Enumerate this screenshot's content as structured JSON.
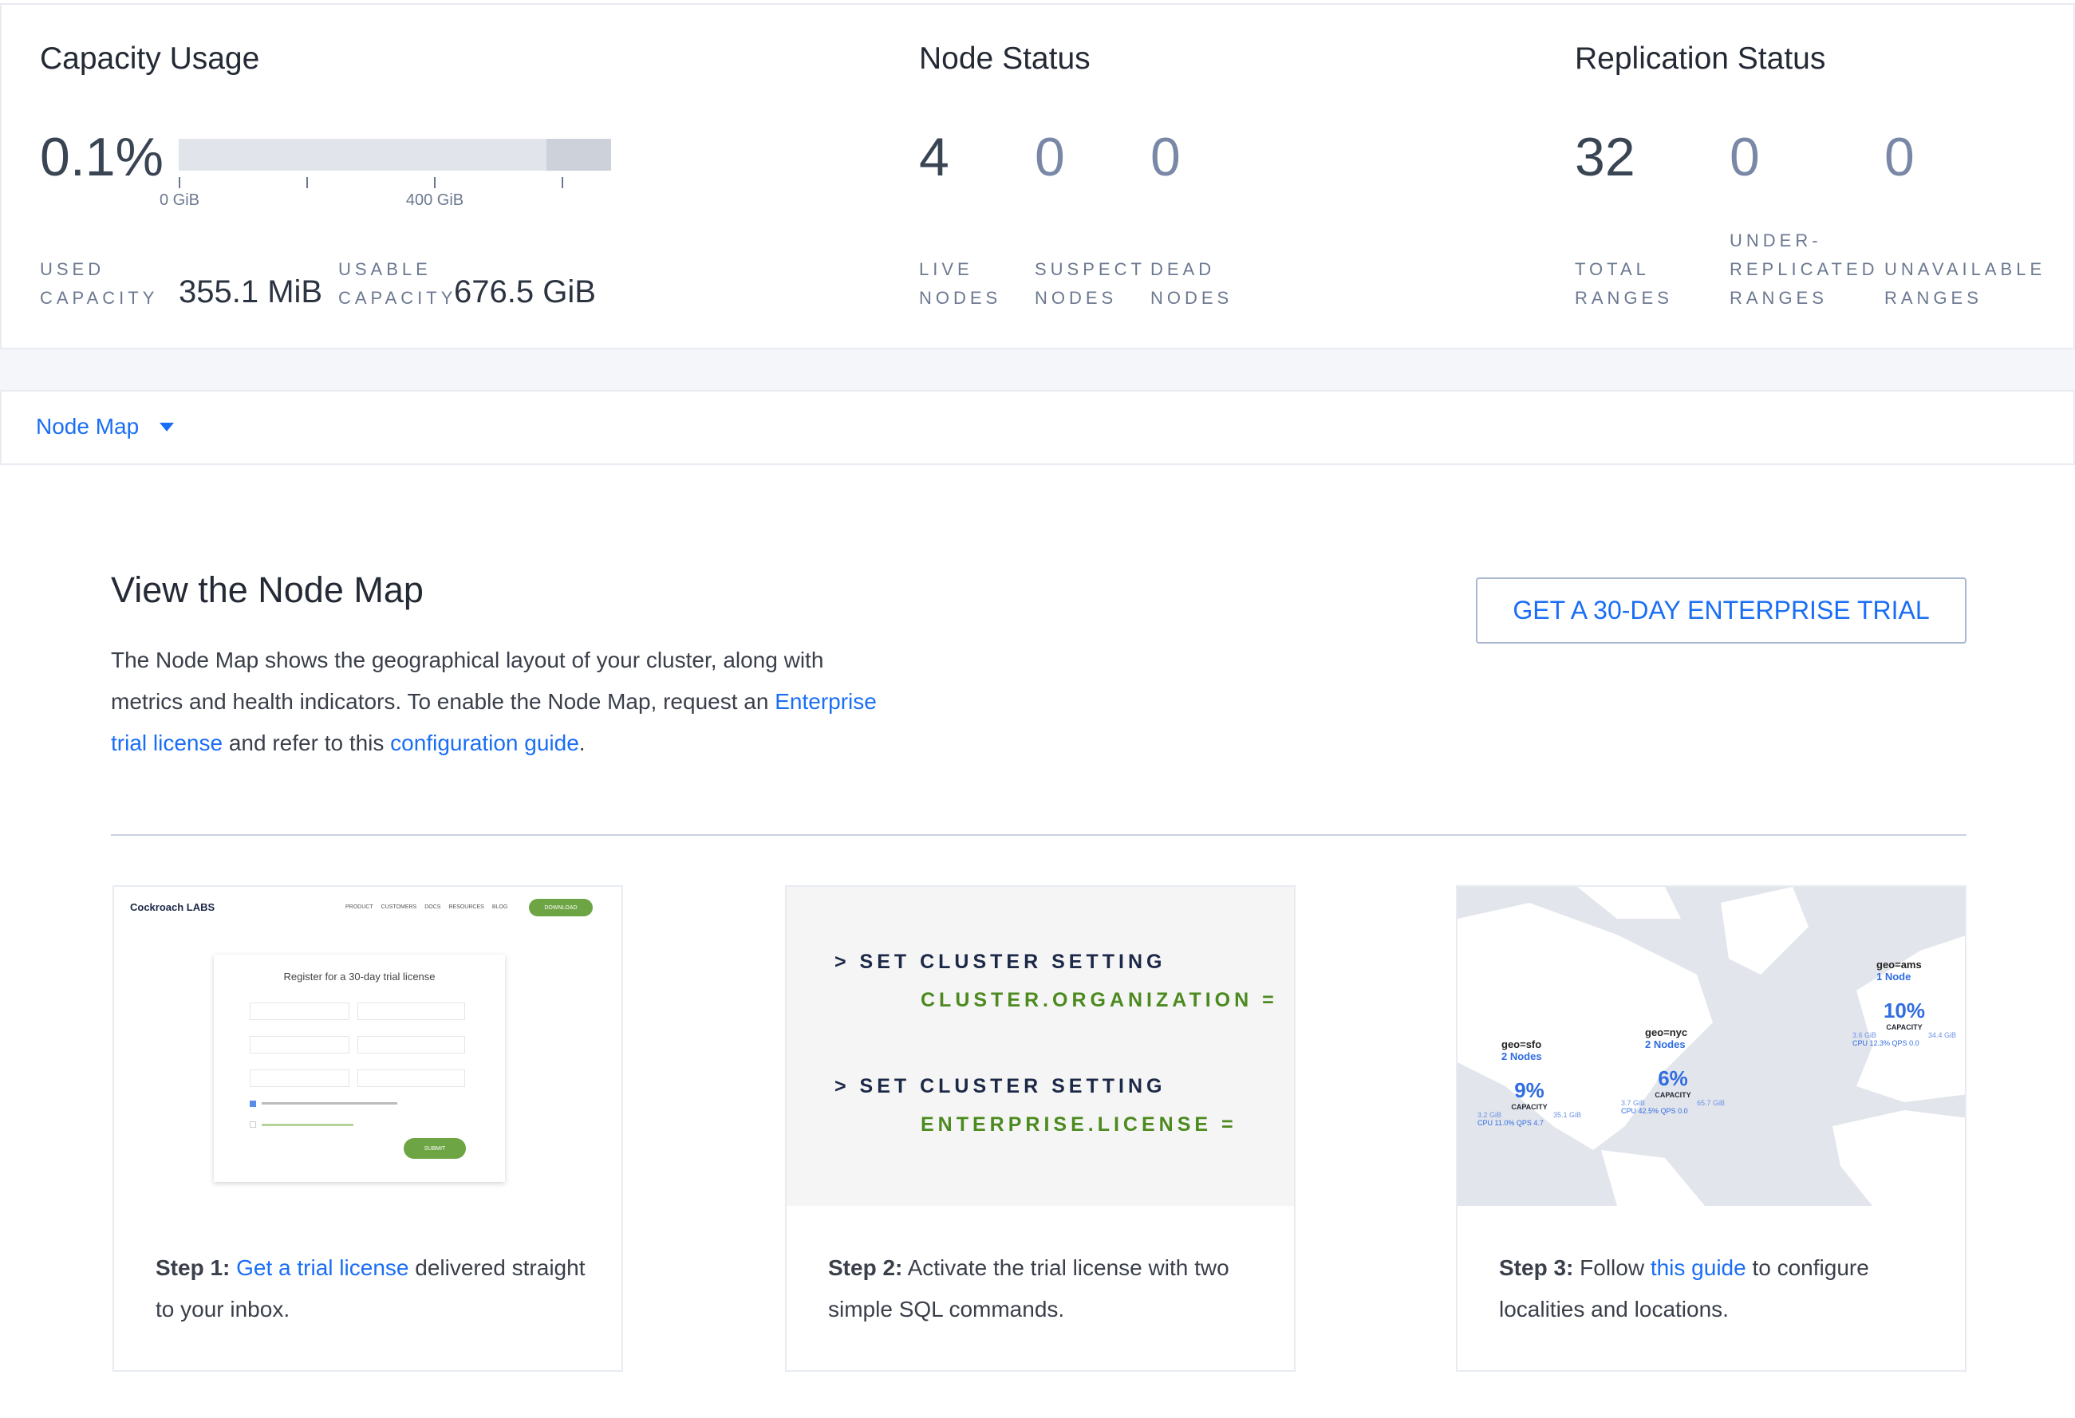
{
  "capacity": {
    "title": "Capacity Usage",
    "percent": "0.1%",
    "bar_used_fraction": 0.001,
    "ticks": [
      "0 GiB",
      "400 GiB"
    ],
    "used_label": [
      "USED",
      "CAPACITY"
    ],
    "used_value": "355.1 MiB",
    "usable_label": [
      "USABLE",
      "CAPACITY"
    ],
    "usable_value": "676.5 GiB"
  },
  "node_status": {
    "title": "Node Status",
    "stats": [
      {
        "value": "4",
        "label": [
          "LIVE",
          "NODES"
        ]
      },
      {
        "value": "0",
        "label": [
          "SUSPECT",
          "NODES"
        ]
      },
      {
        "value": "0",
        "label": [
          "DEAD",
          "NODES"
        ]
      }
    ]
  },
  "replication": {
    "title": "Replication Status",
    "stats": [
      {
        "value": "32",
        "label": [
          "",
          "TOTAL",
          "RANGES"
        ]
      },
      {
        "value": "0",
        "label": [
          "UNDER-",
          "REPLICATED",
          "RANGES"
        ]
      },
      {
        "value": "0",
        "label": [
          "",
          "UNAVAILABLE",
          "RANGES"
        ]
      }
    ]
  },
  "view_select": {
    "label": "Node Map",
    "icon": "caret-down-icon"
  },
  "promo": {
    "heading": "View the Node Map",
    "text1": "The Node Map shows the geographical layout of your cluster, along with metrics and health indicators. To enable the Node Map, request an ",
    "link1": "Enterprise trial license",
    "text2": " and refer to this ",
    "link2": "configuration guide",
    "text3": ".",
    "button": "GET A 30-DAY ENTERPRISE TRIAL"
  },
  "steps": [
    {
      "bold": "Step 1:",
      "link": "Get a trial license",
      "text": " delivered straight to your inbox.",
      "image": {
        "logo": "Cockroach LABS",
        "nav": [
          "PRODUCT",
          "CUSTOMERS",
          "DOCS",
          "RESOURCES",
          "BLOG"
        ],
        "download": "DOWNLOAD",
        "form_title": "Register for a 30-day trial license",
        "submit": "SUBMIT"
      }
    },
    {
      "bold": "Step 2:",
      "text": " Activate the trial license with two simple SQL commands.",
      "code": [
        {
          "cmd": "> SET CLUSTER SETTING",
          "arg": "CLUSTER.ORGANIZATION ="
        },
        {
          "cmd": "> SET CLUSTER SETTING",
          "arg": "ENTERPRISE.LICENSE ="
        }
      ]
    },
    {
      "bold": "Step 3:",
      "pre": " Follow ",
      "link": "this guide",
      "text": " to configure localities and locations.",
      "map": [
        {
          "name": "geo=sfo",
          "nodes": "2 Nodes",
          "pct": "9%",
          "cap": "CAPACITY",
          "used": "3.2 GiB",
          "total": "35.1 GiB",
          "cpu": "11.0%",
          "qps": "4.7"
        },
        {
          "name": "geo=nyc",
          "nodes": "2 Nodes",
          "pct": "6%",
          "cap": "CAPACITY",
          "used": "3.7 GiB",
          "total": "65.7 GiB",
          "cpu": "42.5%",
          "qps": "0.0"
        },
        {
          "name": "geo=ams",
          "nodes": "1 Node",
          "pct": "10%",
          "cap": "CAPACITY",
          "used": "3.6 GiB",
          "total": "34.4 GiB",
          "cpu": "12.3%",
          "qps": "0.0"
        }
      ]
    }
  ],
  "colors": {
    "link": "#1a6ef5",
    "code_green": "#4c8a1f",
    "code_navy": "#1c2847",
    "map_bg": "#e2e5ec"
  }
}
